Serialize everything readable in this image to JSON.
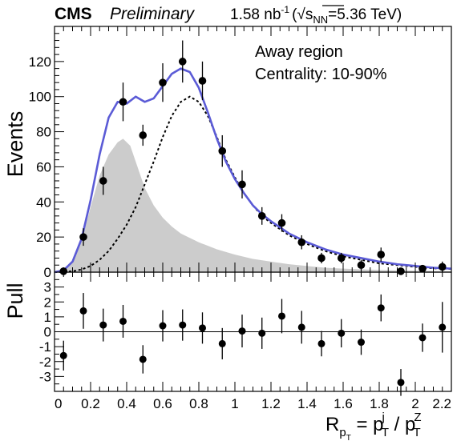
{
  "header": {
    "experiment": "CMS",
    "status": "Preliminary",
    "lumi": "1.58 nb",
    "lumi_exp": "-1",
    "energy_prefix": "(",
    "sqrt_sym": "√",
    "energy_s": "s",
    "energy_sub": "NN",
    "energy_value": "=5.36 TeV)"
  },
  "annotations": {
    "region": "Away region",
    "centrality": "Centrality: 10-90%"
  },
  "chart_data": [
    {
      "type": "scatter",
      "panel": "main",
      "ylabel": "Events",
      "xlim": [
        0,
        2.2
      ],
      "ylim": [
        0,
        140
      ],
      "y_ticks": [
        0,
        20,
        40,
        60,
        80,
        100,
        120
      ],
      "x_ticks": [
        0,
        0.2,
        0.4,
        0.6,
        0.8,
        1,
        1.2,
        1.4,
        1.6,
        1.8,
        2,
        2.2
      ],
      "series": [
        {
          "kind": "data-points",
          "x": [
            0.05,
            0.16,
            0.27,
            0.38,
            0.49,
            0.6,
            0.71,
            0.82,
            0.93,
            1.04,
            1.15,
            1.26,
            1.37,
            1.48,
            1.59,
            1.7,
            1.81,
            1.92,
            2.04,
            2.15
          ],
          "y": [
            0.5,
            20,
            52,
            97,
            78,
            108,
            120,
            109,
            69,
            50,
            32,
            28,
            17,
            8,
            8,
            4,
            10,
            0.5,
            2,
            3
          ],
          "err": [
            1,
            5,
            8,
            11,
            6,
            11,
            12,
            11,
            9,
            8,
            5,
            5,
            4,
            3,
            3,
            3,
            4,
            1,
            2,
            3
          ]
        },
        {
          "kind": "total-fit",
          "color": "#5b5bd6",
          "x": [
            0,
            0.05,
            0.1,
            0.15,
            0.2,
            0.25,
            0.3,
            0.35,
            0.4,
            0.45,
            0.5,
            0.55,
            0.6,
            0.65,
            0.7,
            0.75,
            0.8,
            0.85,
            0.9,
            0.95,
            1.0,
            1.05,
            1.1,
            1.15,
            1.2,
            1.3,
            1.4,
            1.5,
            1.6,
            1.7,
            1.8,
            1.9,
            2.0,
            2.1,
            2.2
          ],
          "y": [
            0,
            1,
            6,
            19,
            41,
            67,
            88,
            97,
            96,
            100,
            97,
            99,
            106,
            113,
            116,
            114,
            105,
            91,
            76,
            63,
            53,
            45,
            38,
            33,
            29,
            22,
            17,
            13,
            10,
            8,
            6,
            4.5,
            3.5,
            2.5,
            2
          ]
        },
        {
          "kind": "signal-component",
          "style": "dashed",
          "color": "#000000",
          "x": [
            0,
            0.05,
            0.1,
            0.15,
            0.2,
            0.25,
            0.3,
            0.35,
            0.4,
            0.45,
            0.5,
            0.55,
            0.6,
            0.65,
            0.7,
            0.75,
            0.8,
            0.85,
            0.9,
            0.95,
            1.0,
            1.05,
            1.1,
            1.15,
            1.2,
            1.3,
            1.4,
            1.5,
            1.6,
            1.7,
            1.8,
            1.9,
            2.0,
            2.1,
            2.2
          ],
          "y": [
            0,
            0.1,
            0.5,
            1.5,
            3.5,
            7,
            12,
            19,
            27,
            37,
            50,
            63,
            77,
            89,
            97,
            100,
            97,
            89,
            77,
            64,
            54,
            45,
            38,
            32,
            28,
            21,
            16,
            12,
            9,
            7,
            5,
            4,
            3,
            2.2,
            1.8
          ]
        },
        {
          "kind": "background-component",
          "style": "filled",
          "color": "#cccccc",
          "x": [
            0,
            0.05,
            0.1,
            0.15,
            0.2,
            0.25,
            0.3,
            0.35,
            0.38,
            0.42,
            0.45,
            0.5,
            0.55,
            0.6,
            0.65,
            0.7,
            0.8,
            0.9,
            1.0,
            1.1,
            1.2,
            1.3,
            1.4,
            1.5,
            1.6,
            1.8,
            2.0,
            2.2
          ],
          "y": [
            0,
            1,
            6,
            18,
            37,
            55,
            67,
            74,
            76,
            72,
            63,
            48,
            38,
            31,
            26,
            22,
            17,
            13,
            10,
            7.5,
            6,
            4.5,
            3.5,
            2.5,
            2,
            1.2,
            0.8,
            0.5
          ]
        }
      ]
    },
    {
      "type": "scatter",
      "panel": "pull",
      "ylabel": "Pull",
      "xlabel_main": "R",
      "xlabel_sub": "p",
      "xlabel_subsub": "T",
      "xlabel_eq": " = p",
      "xlabel_j": "j",
      "xlabel_T1": "T",
      "xlabel_slash": " / p",
      "xlabel_Z": "Z",
      "xlabel_T2": "T",
      "xlim": [
        0,
        2.2
      ],
      "ylim": [
        -4,
        4
      ],
      "y_ticks": [
        -3,
        -2,
        -1,
        0,
        1,
        2,
        3
      ],
      "x_ticks": [
        0,
        0.2,
        0.4,
        0.6,
        0.8,
        1,
        1.2,
        1.4,
        1.6,
        1.8,
        2,
        2.2
      ],
      "x_tick_labels": [
        "0",
        "0.2",
        "0.4",
        "0.6",
        "0.8",
        "1",
        "1.2",
        "1.4",
        "1.6",
        "1.8",
        "2",
        "2.2"
      ],
      "series": [
        {
          "kind": "pull-points",
          "x": [
            0.05,
            0.16,
            0.27,
            0.38,
            0.49,
            0.6,
            0.71,
            0.82,
            0.93,
            1.04,
            1.15,
            1.26,
            1.37,
            1.48,
            1.59,
            1.7,
            1.81,
            1.92,
            2.04,
            2.15
          ],
          "y": [
            -1.6,
            1.4,
            0.45,
            0.7,
            -1.85,
            0.4,
            0.45,
            0.25,
            -0.8,
            0.05,
            -0.1,
            1.05,
            0.3,
            -0.8,
            -0.1,
            -0.7,
            1.6,
            -3.4,
            -0.4,
            0.3
          ],
          "err": [
            1,
            1.2,
            1.1,
            1.1,
            0.95,
            1.05,
            1.05,
            1.05,
            1.05,
            1.1,
            1.05,
            1.15,
            1.1,
            0.85,
            0.95,
            0.85,
            0.9,
            0.9,
            0.95,
            1.7
          ]
        }
      ]
    }
  ]
}
